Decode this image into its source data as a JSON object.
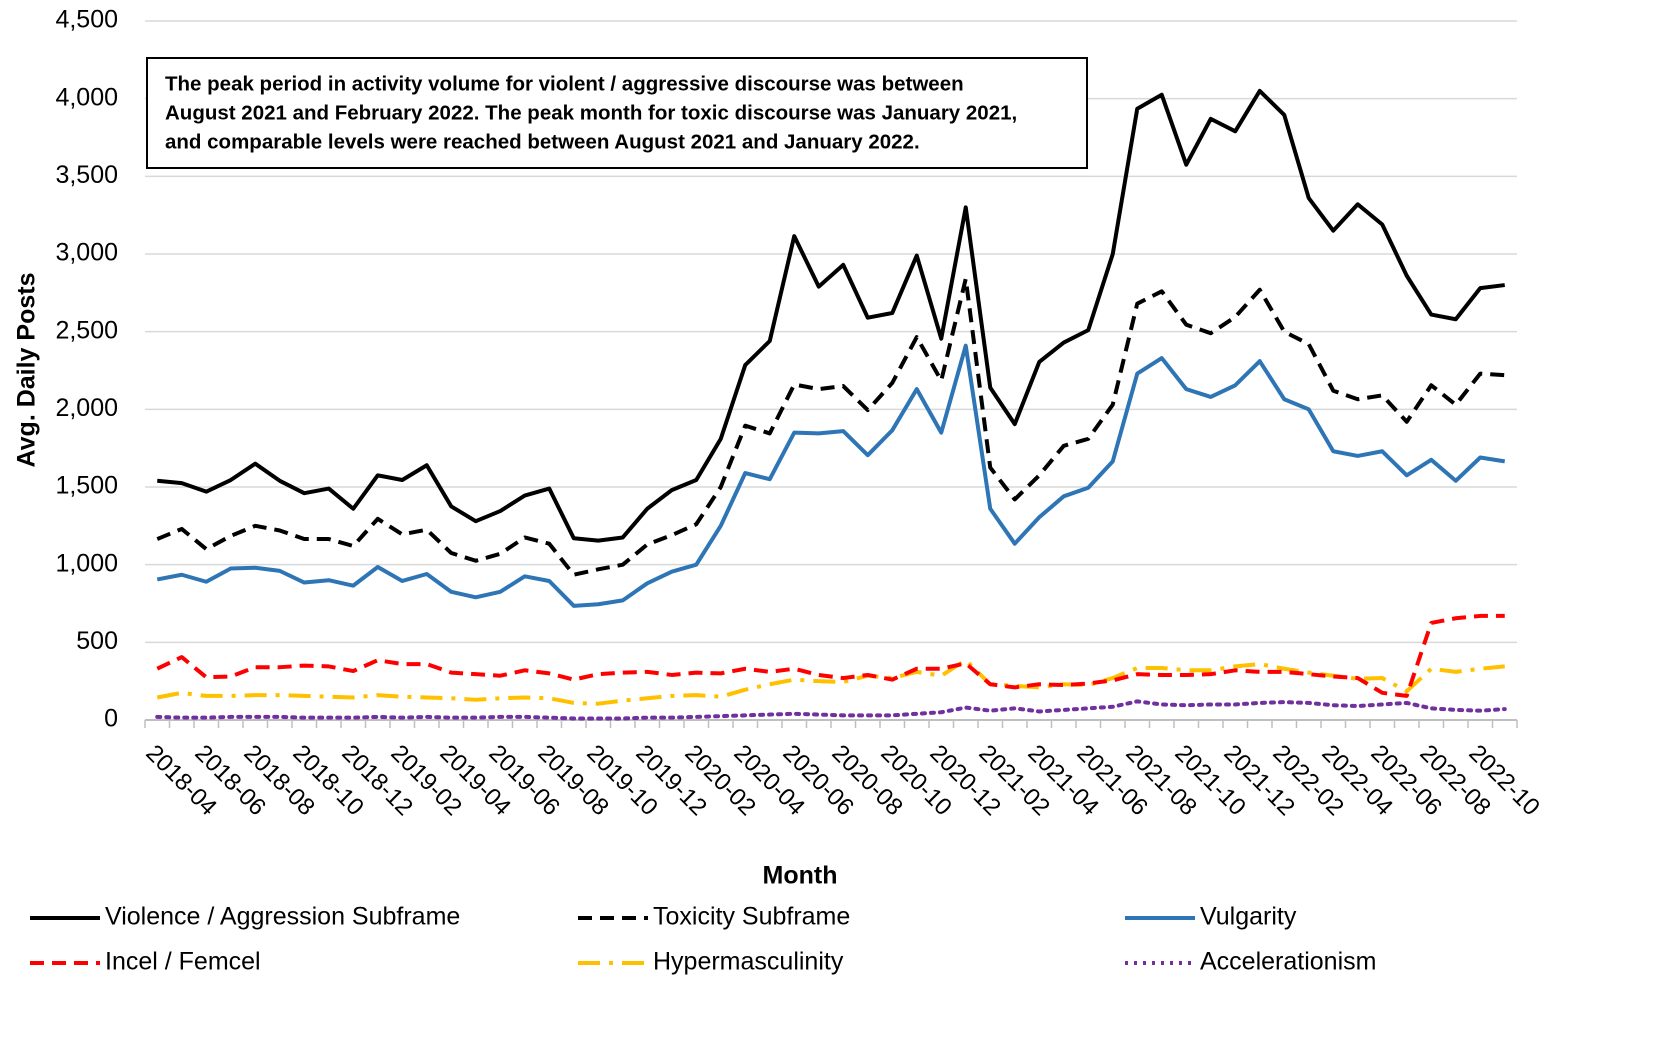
{
  "chart_data": {
    "type": "line",
    "x_label": "Month",
    "y_label": "Avg. Daily Posts",
    "annotation": [
      "The peak period in activity volume for violent / aggressive discourse was between",
      "August 2021 and February 2022. The peak month for toxic discourse was January 2021,",
      "and comparable levels were reached between August 2021 and January 2022."
    ],
    "categories": [
      "2018-04",
      null,
      "2018-06",
      null,
      "2018-08",
      null,
      "2018-10",
      null,
      "2018-12",
      null,
      "2019-02",
      null,
      "2019-04",
      null,
      "2019-06",
      null,
      "2019-08",
      null,
      "2019-10",
      null,
      "2019-12",
      null,
      "2020-02",
      null,
      "2020-04",
      null,
      "2020-06",
      null,
      "2020-08",
      null,
      "2020-10",
      null,
      "2020-12",
      null,
      "2021-02",
      null,
      "2021-04",
      null,
      "2021-06",
      null,
      "2021-08",
      null,
      "2021-10",
      null,
      "2021-12",
      null,
      "2022-02",
      null,
      "2022-04",
      null,
      "2022-06",
      null,
      "2022-08",
      null,
      "2022-10",
      null
    ],
    "ylim": [
      0,
      4500
    ],
    "yticks": [
      0,
      500,
      {
        "value": 1000,
        "label": "1,000"
      },
      {
        "value": 1500,
        "label": "1,500"
      },
      {
        "value": 2000,
        "label": "2,000"
      },
      {
        "value": 2500,
        "label": "2,500"
      },
      {
        "value": 3000,
        "label": "3,000"
      },
      {
        "value": 3500,
        "label": "3,500"
      },
      {
        "value": 4000,
        "label": "4,000"
      },
      {
        "value": 4500,
        "label": "4,500"
      }
    ],
    "grid": true,
    "legend": "bottom",
    "series": [
      {
        "name": "Violence / Aggression Subframe",
        "color": "#000000",
        "dash": "solid",
        "values": [
          1540,
          1525,
          1470,
          1545,
          1650,
          1540,
          1460,
          1490,
          1360,
          1575,
          1545,
          1640,
          1375,
          1280,
          1345,
          1445,
          1490,
          1170,
          1155,
          1175,
          1360,
          1480,
          1545,
          1810,
          2285,
          2440,
          3115,
          2790,
          2930,
          2590,
          2620,
          2990,
          2455,
          3300,
          2140,
          1905,
          2305,
          2430,
          2510,
          3000,
          3935,
          4025,
          3575,
          3870,
          3790,
          4050,
          3895,
          3360,
          3150,
          3320,
          3190,
          2860,
          2610,
          2580,
          2780,
          2800
        ]
      },
      {
        "name": "Toxicity Subframe",
        "color": "#000000",
        "dash": "dashed",
        "values": [
          1165,
          1230,
          1100,
          1185,
          1250,
          1220,
          1165,
          1165,
          1120,
          1295,
          1195,
          1225,
          1075,
          1025,
          1070,
          1175,
          1135,
          935,
          970,
          1000,
          1130,
          1190,
          1260,
          1500,
          1895,
          1845,
          2160,
          2130,
          2150,
          1995,
          2170,
          2465,
          2185,
          2840,
          1625,
          1420,
          1575,
          1765,
          1810,
          2030,
          2680,
          2760,
          2545,
          2490,
          2595,
          2770,
          2500,
          2420,
          2120,
          2065,
          2090,
          1920,
          2155,
          2030,
          2230,
          2220
        ]
      },
      {
        "name": "Vulgarity",
        "color": "#2e75b6",
        "dash": "solid",
        "values": [
          905,
          935,
          890,
          975,
          980,
          960,
          885,
          900,
          865,
          985,
          895,
          940,
          825,
          790,
          825,
          925,
          895,
          735,
          745,
          770,
          880,
          955,
          1000,
          1250,
          1590,
          1550,
          1850,
          1845,
          1860,
          1705,
          1865,
          2130,
          1850,
          2410,
          1360,
          1135,
          1305,
          1440,
          1495,
          1665,
          2230,
          2330,
          2130,
          2080,
          2155,
          2310,
          2065,
          2000,
          1730,
          1700,
          1730,
          1575,
          1675,
          1540,
          1690,
          1665
        ]
      },
      {
        "name": "Incel / Femcel",
        "color": "#ff0000",
        "dash": "dashed",
        "values": [
          330,
          405,
          275,
          280,
          340,
          340,
          350,
          345,
          315,
          385,
          360,
          360,
          305,
          295,
          285,
          320,
          300,
          260,
          295,
          305,
          310,
          290,
          305,
          300,
          330,
          310,
          330,
          290,
          270,
          290,
          260,
          330,
          330,
          365,
          230,
          210,
          230,
          225,
          235,
          255,
          295,
          290,
          290,
          295,
          320,
          310,
          310,
          295,
          280,
          270,
          175,
          155,
          625,
          655,
          670,
          670
        ]
      },
      {
        "name": "Hypermasculinity",
        "color": "#ffc000",
        "dash": "dashdot",
        "values": [
          145,
          175,
          155,
          155,
          160,
          160,
          155,
          150,
          145,
          160,
          150,
          145,
          140,
          130,
          140,
          145,
          140,
          110,
          105,
          125,
          140,
          155,
          160,
          150,
          195,
          230,
          260,
          250,
          245,
          285,
          270,
          310,
          285,
          385,
          230,
          220,
          210,
          230,
          225,
          270,
          335,
          335,
          320,
          320,
          345,
          360,
          330,
          305,
          285,
          265,
          270,
          185,
          330,
          310,
          330,
          345
        ]
      },
      {
        "name": "Accelerationism",
        "color": "#7030a0",
        "dash": "dotted",
        "values": [
          20,
          15,
          15,
          20,
          20,
          20,
          15,
          15,
          15,
          20,
          15,
          20,
          15,
          15,
          20,
          20,
          15,
          10,
          10,
          10,
          15,
          15,
          20,
          25,
          30,
          35,
          40,
          35,
          30,
          30,
          30,
          40,
          50,
          80,
          60,
          75,
          55,
          65,
          75,
          85,
          120,
          100,
          95,
          100,
          100,
          110,
          115,
          110,
          95,
          90,
          100,
          110,
          75,
          65,
          60,
          70
        ]
      }
    ]
  }
}
